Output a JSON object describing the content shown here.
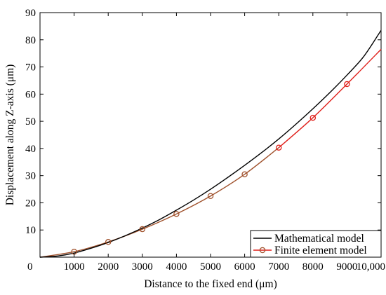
{
  "chart_data": {
    "type": "line",
    "xlabel": "Distance to the fixed end (μm)",
    "ylabel": "Displacement along Z-axis (μm)",
    "xlim": [
      0,
      10000
    ],
    "ylim": [
      0,
      90
    ],
    "x_ticks": [
      "0",
      "1000",
      "2000",
      "3000",
      "4000",
      "5000",
      "6000",
      "7000",
      "8000",
      "9000",
      "10,000"
    ],
    "y_ticks": [
      "10",
      "20",
      "30",
      "40",
      "50",
      "60",
      "70",
      "80",
      "90"
    ],
    "y_tick_values": [
      10,
      20,
      30,
      40,
      50,
      60,
      70,
      80,
      90
    ],
    "grid": false,
    "legend_position": "bottom-right",
    "series": [
      {
        "name": "Mathematical model",
        "color": "#000000",
        "marker": "none",
        "x": [
          0,
          500,
          1000,
          1500,
          2000,
          2500,
          3000,
          3500,
          4000,
          4500,
          5000,
          5500,
          6000,
          6500,
          7000,
          7500,
          8000,
          8500,
          9000,
          9500,
          10000
        ],
        "y": [
          0,
          0.4,
          1.5,
          3.3,
          5.4,
          7.9,
          10.7,
          13.8,
          17.3,
          21.0,
          25.0,
          29.3,
          33.8,
          38.5,
          43.5,
          48.9,
          54.6,
          60.6,
          67.0,
          74.0,
          83.5
        ]
      },
      {
        "name": "Finite element model",
        "color": "#e0201b",
        "early_color": "#a0522d",
        "marker": "circle",
        "x": [
          0,
          1000,
          2000,
          3000,
          4000,
          5000,
          6000,
          7000,
          8000,
          9000,
          10000
        ],
        "y": [
          0,
          2.0,
          5.6,
          10.3,
          15.9,
          22.5,
          30.5,
          40.3,
          51.3,
          63.7,
          76.5
        ],
        "marker_x": [
          1000,
          2000,
          3000,
          4000,
          5000,
          6000,
          7000,
          8000,
          9000
        ]
      }
    ]
  }
}
